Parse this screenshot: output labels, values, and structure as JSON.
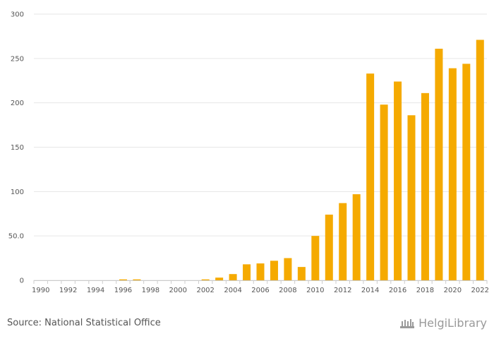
{
  "chart_data": {
    "type": "bar",
    "categories": [
      "1990",
      "1991",
      "1992",
      "1993",
      "1994",
      "1995",
      "1996",
      "1997",
      "1998",
      "1999",
      "2000",
      "2001",
      "2002",
      "2003",
      "2004",
      "2005",
      "2006",
      "2007",
      "2008",
      "2009",
      "2010",
      "2011",
      "2012",
      "2013",
      "2014",
      "2015",
      "2016",
      "2017",
      "2018",
      "2019",
      "2020",
      "2021",
      "2022"
    ],
    "x_tick_labels": [
      "1990",
      "1992",
      "1994",
      "1996",
      "1998",
      "2000",
      "2002",
      "2004",
      "2006",
      "2008",
      "2010",
      "2012",
      "2014",
      "2016",
      "2018",
      "2020",
      "2022"
    ],
    "values": [
      0,
      0,
      0,
      0,
      0,
      0,
      1,
      1,
      0,
      0,
      0,
      0,
      1,
      3,
      7,
      18,
      19,
      22,
      25,
      15,
      50,
      74,
      87,
      97,
      233,
      198,
      224,
      186,
      211,
      261,
      239,
      244,
      271
    ],
    "ylim": [
      0,
      300
    ],
    "y_ticks": [
      0,
      50,
      100,
      150,
      200,
      250,
      300
    ],
    "y_tick_labels": [
      "0",
      "50.0",
      "100",
      "150",
      "200",
      "250",
      "300"
    ],
    "title": "",
    "xlabel": "",
    "ylabel": "",
    "grid": true,
    "bar_color": "#f5aa00"
  },
  "footer": {
    "source": "Source: National Statistical Office",
    "brand": "HelgiLibrary",
    "brand_icon": "library-building-icon"
  }
}
